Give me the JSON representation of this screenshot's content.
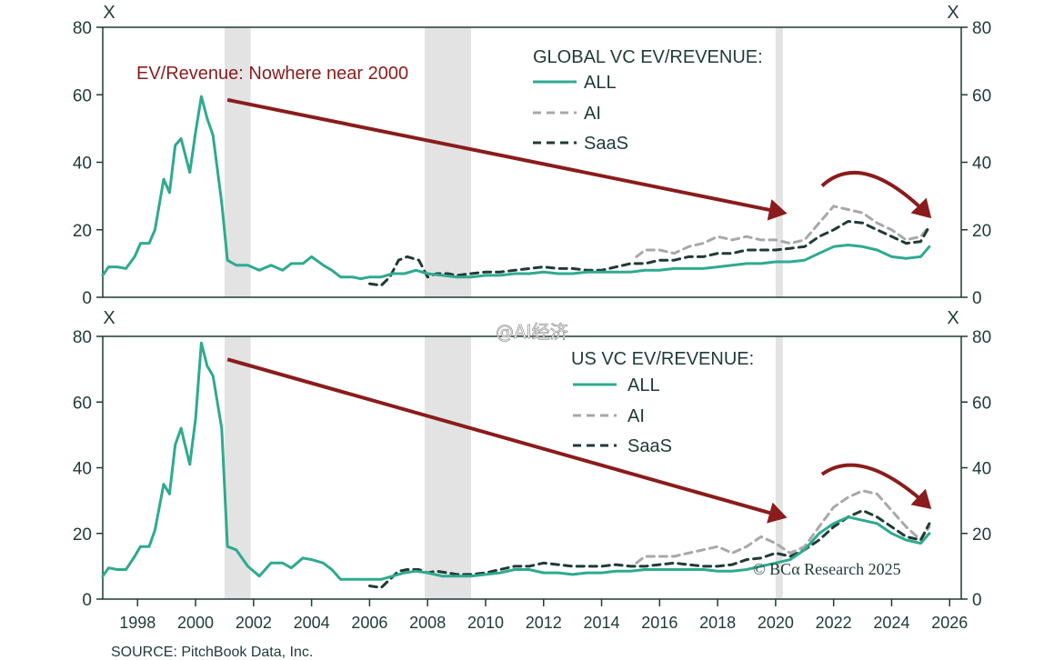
{
  "source": "SOURCE: PitchBook Data, Inc.",
  "copyright": "© BCα Research 2025",
  "watermark": "@AI经济",
  "colors": {
    "all": "#2eaa8f",
    "ai": "#a8a8a8",
    "saas": "#1f3b36",
    "arrow": "#8a1c1c",
    "recession_shading": "#e3e3e3",
    "axis": "#1f3b36"
  },
  "chart_data": [
    {
      "type": "line",
      "id": "global",
      "legend_title": "GLOBAL VC EV/REVENUE:",
      "annotation": "EV/Revenue: Nowhere near 2000",
      "unit_label": "X",
      "ylim": [
        0,
        80
      ],
      "yticks": [
        0,
        20,
        40,
        60,
        80
      ],
      "xlim": [
        1996.8,
        2026.4
      ],
      "xticks": [
        1998,
        2000,
        2002,
        2004,
        2006,
        2008,
        2010,
        2012,
        2014,
        2016,
        2018,
        2020,
        2022,
        2024,
        2026
      ],
      "grid": false,
      "legend_position": "top-right",
      "shaded_periods": [
        [
          2001.0,
          2001.9
        ],
        [
          2007.9,
          2009.5
        ],
        [
          2020.0,
          2020.25
        ]
      ],
      "trend_arrow": {
        "from": [
          2001.1,
          58.5
        ],
        "to": [
          2020.3,
          25
        ]
      },
      "curved_arrow": {
        "from": [
          2021.6,
          33
        ],
        "peak": [
          2023.0,
          38
        ],
        "to": [
          2025.3,
          24
        ]
      },
      "series": [
        {
          "name": "ALL",
          "style": "solid",
          "x": [
            1996.8,
            1997.0,
            1997.3,
            1997.6,
            1997.9,
            1998.1,
            1998.4,
            1998.6,
            1998.9,
            1999.1,
            1999.3,
            1999.5,
            1999.8,
            2000.0,
            2000.2,
            2000.4,
            2000.6,
            2000.9,
            2001.1,
            2001.4,
            2001.8,
            2002.2,
            2002.6,
            2003.0,
            2003.3,
            2003.7,
            2004.0,
            2004.4,
            2004.7,
            2005.0,
            2005.4,
            2005.7,
            2006.0,
            2006.4,
            2006.8,
            2007.2,
            2007.6,
            2008.0,
            2008.5,
            2009.0,
            2009.5,
            2010.0,
            2010.5,
            2011.0,
            2011.5,
            2012.0,
            2012.5,
            2013.0,
            2013.5,
            2014.0,
            2014.5,
            2015.0,
            2015.5,
            2016.0,
            2016.5,
            2017.0,
            2017.5,
            2018.0,
            2018.5,
            2019.0,
            2019.5,
            2020.0,
            2020.5,
            2021.0,
            2021.5,
            2022.0,
            2022.5,
            2023.0,
            2023.5,
            2024.0,
            2024.5,
            2025.0,
            2025.3
          ],
          "values": [
            6.5,
            9,
            9,
            8.5,
            12,
            16,
            16,
            20,
            35,
            31,
            45,
            47,
            37,
            49,
            59.5,
            53,
            48,
            28,
            11,
            9.5,
            9.5,
            8,
            9.5,
            8,
            10,
            10,
            12,
            9.5,
            8,
            6,
            6,
            5.5,
            6,
            6,
            7,
            7,
            8,
            7,
            6.5,
            6,
            6,
            6.5,
            6.5,
            7,
            7,
            7.5,
            7,
            7,
            7.5,
            7.5,
            7.5,
            7.5,
            8,
            8,
            8.5,
            8.5,
            8.5,
            9,
            9.5,
            10,
            10,
            10.5,
            10.5,
            11,
            13,
            15,
            15.5,
            15,
            14,
            12,
            11.5,
            12,
            15
          ]
        },
        {
          "name": "AI",
          "style": "dashed",
          "x": [
            2015.2,
            2015.5,
            2016.0,
            2016.5,
            2017.0,
            2017.5,
            2018.0,
            2018.5,
            2019.0,
            2019.5,
            2020.0,
            2020.5,
            2021.0,
            2021.5,
            2022.0,
            2022.5,
            2023.0,
            2023.5,
            2024.0,
            2024.5,
            2025.0,
            2025.3
          ],
          "values": [
            12,
            14,
            14,
            13,
            15,
            16,
            18,
            17,
            18,
            17,
            17,
            16,
            17,
            22,
            27,
            26,
            25,
            22,
            20,
            17,
            18,
            21
          ]
        },
        {
          "name": "SaaS",
          "style": "dashed",
          "x": [
            2006.0,
            2006.4,
            2006.7,
            2007.0,
            2007.3,
            2007.7,
            2008.0,
            2008.3,
            2008.7,
            2009.0,
            2009.5,
            2010.0,
            2010.5,
            2011.0,
            2011.5,
            2012.0,
            2012.5,
            2013.0,
            2013.5,
            2014.0,
            2014.5,
            2015.0,
            2015.5,
            2016.0,
            2016.5,
            2017.0,
            2017.5,
            2018.0,
            2018.5,
            2019.0,
            2019.5,
            2020.0,
            2020.5,
            2021.0,
            2021.5,
            2022.0,
            2022.5,
            2023.0,
            2023.5,
            2024.0,
            2024.5,
            2025.0,
            2025.3
          ],
          "values": [
            4,
            3.5,
            6,
            11,
            12,
            11,
            6,
            7,
            7,
            6.5,
            7,
            7.5,
            7.5,
            8,
            8.5,
            9,
            8.5,
            8.5,
            8,
            8,
            9,
            10,
            10,
            11,
            11,
            12,
            12,
            13,
            13,
            14,
            14,
            14,
            14.5,
            15,
            18,
            20,
            22.5,
            22,
            20,
            18,
            16,
            16.5,
            21
          ]
        }
      ]
    },
    {
      "type": "line",
      "id": "us",
      "legend_title": "US VC EV/REVENUE:",
      "unit_label": "X",
      "ylim": [
        0,
        80
      ],
      "yticks": [
        0,
        20,
        40,
        60,
        80
      ],
      "xlim": [
        1996.8,
        2026.4
      ],
      "xticks": [
        1998,
        2000,
        2002,
        2004,
        2006,
        2008,
        2010,
        2012,
        2014,
        2016,
        2018,
        2020,
        2022,
        2024,
        2026
      ],
      "grid": false,
      "legend_position": "top-right",
      "shaded_periods": [
        [
          2001.0,
          2001.9
        ],
        [
          2007.9,
          2009.5
        ],
        [
          2020.0,
          2020.25
        ]
      ],
      "trend_arrow": {
        "from": [
          2001.1,
          73
        ],
        "to": [
          2020.3,
          25
        ]
      },
      "curved_arrow": {
        "from": [
          2021.6,
          38
        ],
        "peak": [
          2023.0,
          42
        ],
        "to": [
          2025.3,
          28
        ]
      },
      "series": [
        {
          "name": "ALL",
          "style": "solid",
          "x": [
            1996.8,
            1997.0,
            1997.3,
            1997.6,
            1997.9,
            1998.1,
            1998.4,
            1998.6,
            1998.9,
            1999.1,
            1999.3,
            1999.5,
            1999.8,
            2000.0,
            2000.2,
            2000.4,
            2000.6,
            2000.9,
            2001.1,
            2001.4,
            2001.8,
            2002.2,
            2002.6,
            2003.0,
            2003.3,
            2003.7,
            2004.0,
            2004.4,
            2004.7,
            2005.0,
            2005.4,
            2005.7,
            2006.0,
            2006.4,
            2006.8,
            2007.2,
            2007.6,
            2008.0,
            2008.5,
            2009.0,
            2009.5,
            2010.0,
            2010.5,
            2011.0,
            2011.5,
            2012.0,
            2012.5,
            2013.0,
            2013.5,
            2014.0,
            2014.5,
            2015.0,
            2015.5,
            2016.0,
            2016.5,
            2017.0,
            2017.5,
            2018.0,
            2018.5,
            2019.0,
            2019.5,
            2020.0,
            2020.5,
            2021.0,
            2021.5,
            2022.0,
            2022.5,
            2023.0,
            2023.5,
            2024.0,
            2024.5,
            2025.0,
            2025.3
          ],
          "values": [
            7,
            9.5,
            9,
            9,
            13,
            16,
            16,
            21,
            35,
            32,
            47,
            52,
            41,
            55,
            78,
            71,
            68,
            52,
            16,
            15,
            10,
            7,
            11,
            11,
            9.5,
            12.5,
            12,
            11,
            9,
            6,
            6,
            6,
            6,
            6,
            7,
            8,
            8.5,
            8,
            7,
            7,
            7,
            7.5,
            8,
            9,
            9,
            8,
            8,
            7.5,
            8,
            8,
            8.5,
            8.5,
            9,
            9,
            9,
            9,
            9,
            8.5,
            8.5,
            9,
            10,
            11,
            12,
            15,
            20,
            23,
            25,
            24,
            23,
            20,
            18,
            17,
            20
          ]
        },
        {
          "name": "AI",
          "style": "dashed",
          "x": [
            2015.2,
            2015.5,
            2016.0,
            2016.5,
            2017.0,
            2017.5,
            2018.0,
            2018.5,
            2019.0,
            2019.5,
            2020.0,
            2020.5,
            2021.0,
            2021.5,
            2022.0,
            2022.5,
            2023.0,
            2023.5,
            2024.0,
            2024.5,
            2025.0,
            2025.3
          ],
          "values": [
            11,
            13,
            13,
            13,
            14,
            15,
            16,
            14,
            16,
            19,
            17,
            14,
            16,
            22,
            28,
            31,
            33,
            32,
            27,
            22,
            18,
            22
          ]
        },
        {
          "name": "SaaS",
          "style": "dashed",
          "x": [
            2006.0,
            2006.4,
            2006.7,
            2007.0,
            2007.3,
            2007.7,
            2008.0,
            2008.3,
            2008.7,
            2009.0,
            2009.5,
            2010.0,
            2010.5,
            2011.0,
            2011.5,
            2012.0,
            2012.5,
            2013.0,
            2013.5,
            2014.0,
            2014.5,
            2015.0,
            2015.5,
            2016.0,
            2016.5,
            2017.0,
            2017.5,
            2018.0,
            2018.5,
            2019.0,
            2019.5,
            2020.0,
            2020.5,
            2021.0,
            2021.5,
            2022.0,
            2022.5,
            2023.0,
            2023.5,
            2024.0,
            2024.5,
            2025.0,
            2025.3
          ],
          "values": [
            4,
            3.5,
            6,
            8.5,
            9,
            9,
            8,
            8.5,
            8,
            7.5,
            7.5,
            8,
            9,
            10,
            10,
            11,
            10.5,
            10,
            10,
            10,
            10.5,
            10,
            10,
            10.5,
            11,
            10.5,
            10,
            10,
            10.5,
            12,
            12.5,
            14,
            13,
            15,
            18,
            22,
            25,
            27,
            25,
            22,
            19,
            18,
            23
          ]
        }
      ]
    }
  ]
}
